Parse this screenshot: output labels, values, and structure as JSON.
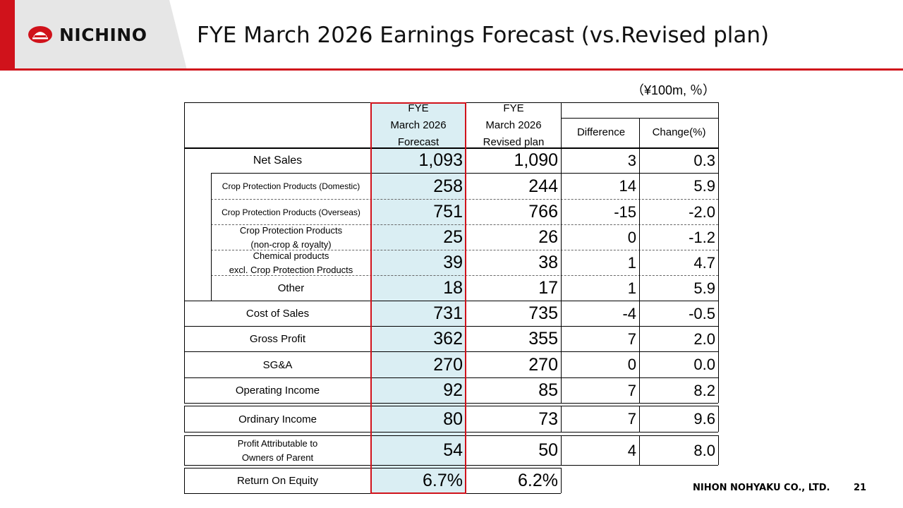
{
  "logo": {
    "text": "NICHINO"
  },
  "title": "FYE March 2026 Earnings Forecast (vs.Revised plan)",
  "unit_note": "（¥100m, ％）",
  "table": {
    "headers": {
      "forecast": [
        "FYE",
        "March 2026",
        "Forecast"
      ],
      "revised": [
        "FYE",
        "March 2026",
        "Revised plan"
      ],
      "difference": "Difference",
      "change": "Change(%)"
    },
    "rows": [
      {
        "label": "Net Sales",
        "forecast": "1,093",
        "revised": "1,090",
        "difference": "3",
        "change": "0.3"
      },
      {
        "label": "Crop Protection Products (Domestic)",
        "forecast": "258",
        "revised": "244",
        "difference": "14",
        "change": "5.9"
      },
      {
        "label": "Crop Protection Products (Overseas)",
        "forecast": "751",
        "revised": "766",
        "difference": "-15",
        "change": "-2.0"
      },
      {
        "label_lines": [
          "Crop Protection Products",
          "(non-crop & royalty)"
        ],
        "forecast": "25",
        "revised": "26",
        "difference": "0",
        "change": "-1.2"
      },
      {
        "label_lines": [
          "Chemical products",
          "excl. Crop Protection Products"
        ],
        "forecast": "39",
        "revised": "38",
        "difference": "1",
        "change": "4.7"
      },
      {
        "label": "Other",
        "forecast": "18",
        "revised": "17",
        "difference": "1",
        "change": "5.9"
      },
      {
        "label": "Cost of Sales",
        "forecast": "731",
        "revised": "735",
        "difference": "-4",
        "change": "-0.5"
      },
      {
        "label": "Gross Profit",
        "forecast": "362",
        "revised": "355",
        "difference": "7",
        "change": "2.0"
      },
      {
        "label": "SG&A",
        "forecast": "270",
        "revised": "270",
        "difference": "0",
        "change": "0.0"
      },
      {
        "label": "Operating Income",
        "forecast": "92",
        "revised": "85",
        "difference": "7",
        "change": "8.2"
      },
      {
        "label": "Ordinary Income",
        "forecast": "80",
        "revised": "73",
        "difference": "7",
        "change": "9.6"
      },
      {
        "label_lines": [
          "Profit Attributable to",
          "Owners of Parent"
        ],
        "forecast": "54",
        "revised": "50",
        "difference": "4",
        "change": "8.0"
      },
      {
        "label": "Return On Equity",
        "forecast": "6.7%",
        "revised": "6.2%"
      }
    ]
  },
  "footer": {
    "company": "NIHON NOHYAKU CO., LTD.",
    "page": "21"
  },
  "colors": {
    "accent_red": "#d0121b",
    "forecast_fill": "#daeef3",
    "header_gray": "#e6e6e6"
  }
}
